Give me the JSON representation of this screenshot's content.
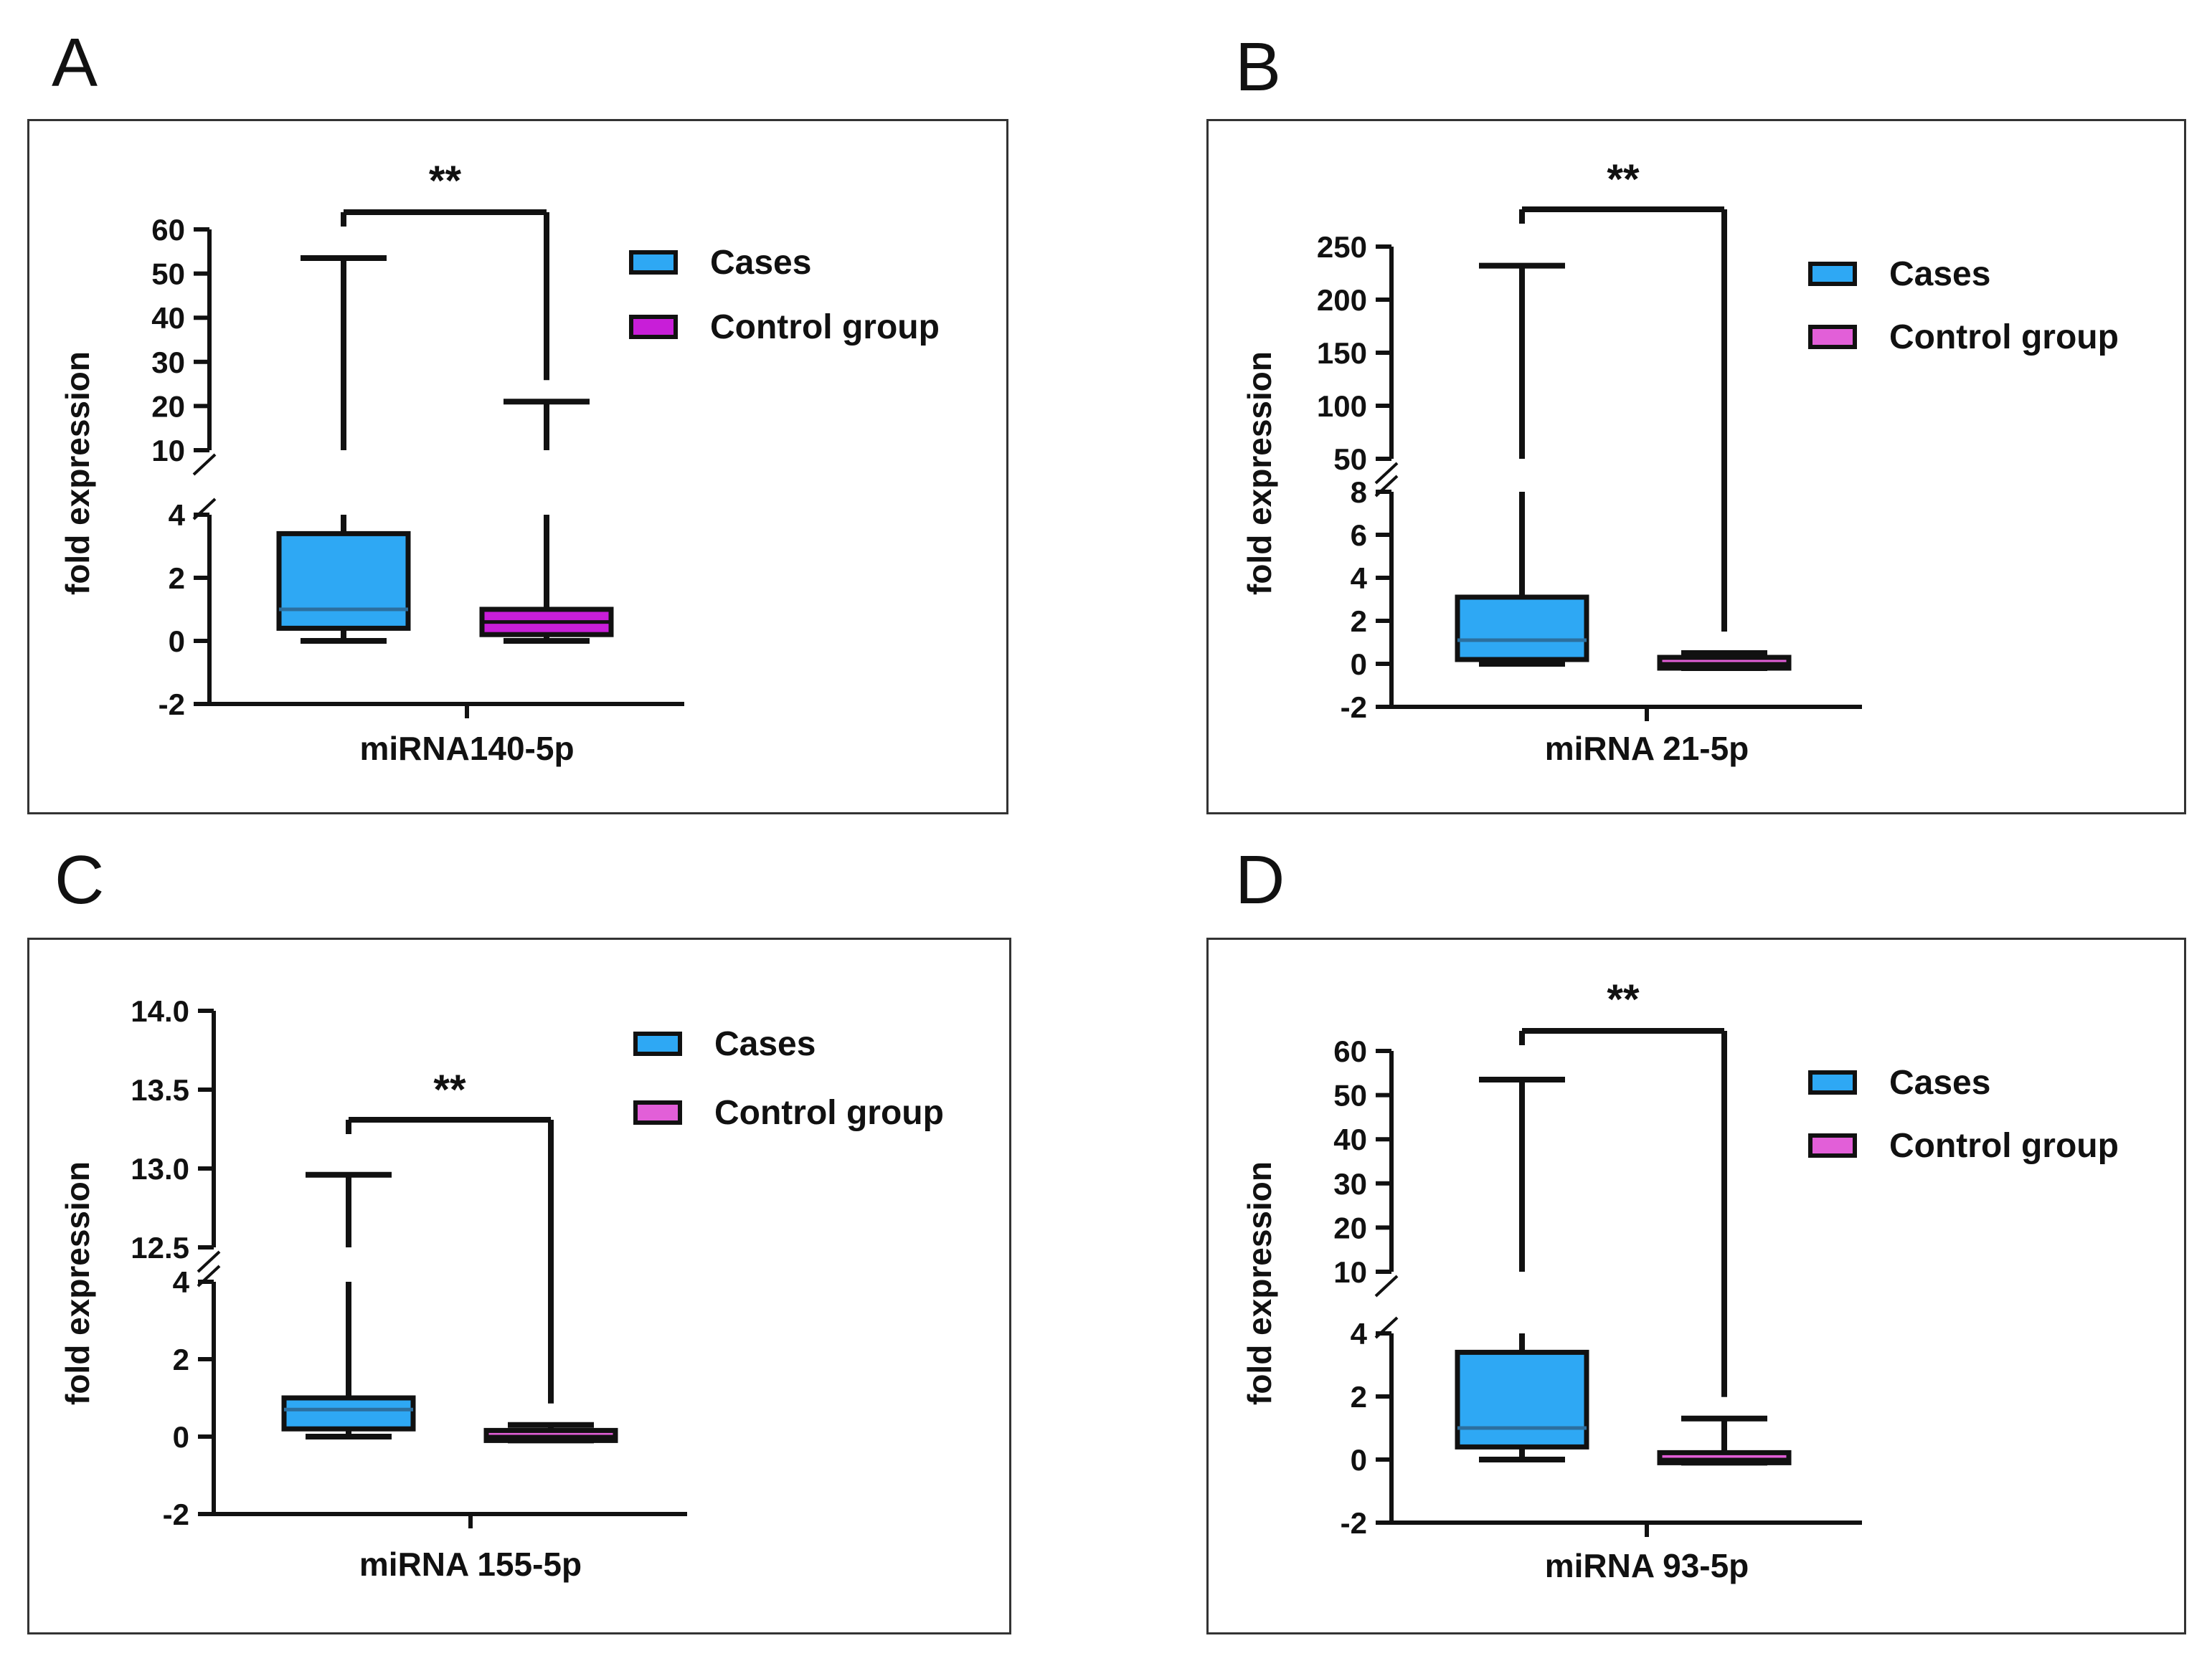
{
  "chart_data": [
    {
      "panel": "A",
      "type": "box",
      "xlabel": "miRNA140-5p",
      "ylabel": "fold expression",
      "significance": "**",
      "colors": {
        "cases": "#2ea8f4",
        "control": "#c81ed8"
      },
      "ylim_lower": [
        -2,
        4
      ],
      "ylim_upper": [
        10,
        60
      ],
      "yticks_lower": [
        -2,
        0,
        2,
        4
      ],
      "yticks_upper": [
        10,
        20,
        30,
        40,
        50,
        60
      ],
      "legend": [
        "Cases",
        "Control group"
      ],
      "series": [
        {
          "name": "Cases",
          "min": 0.0,
          "q1": 0.4,
          "median": 1.0,
          "q3": 3.4,
          "max": 53.5
        },
        {
          "name": "Control group",
          "min": 0.0,
          "q1": 0.2,
          "median": 0.6,
          "q3": 1.0,
          "max": 21.0
        }
      ]
    },
    {
      "panel": "B",
      "type": "box",
      "xlabel": "miRNA 21-5p",
      "ylabel": "fold expression",
      "significance": "**",
      "colors": {
        "cases": "#2ea8f4",
        "control": "#e25fd8"
      },
      "ylim_lower": [
        -2,
        8
      ],
      "ylim_upper": [
        25,
        250
      ],
      "yticks_lower": [
        -2,
        0,
        2,
        4,
        6,
        8
      ],
      "yticks_upper": [
        50,
        100,
        150,
        200,
        250
      ],
      "legend": [
        "Cases",
        "Control group"
      ],
      "series": [
        {
          "name": "Cases",
          "min": 0.0,
          "q1": 0.2,
          "median": 1.1,
          "q3": 3.1,
          "max": 232
        },
        {
          "name": "Control group",
          "min": -0.2,
          "q1": -0.2,
          "median": 0.0,
          "q3": 0.3,
          "max": 0.5
        }
      ]
    },
    {
      "panel": "C",
      "type": "box",
      "xlabel": "miRNA 155-5p",
      "ylabel": "fold expression",
      "significance": "**",
      "colors": {
        "cases": "#2ea8f4",
        "control": "#e25fd8"
      },
      "ylim_lower": [
        -2,
        4
      ],
      "ylim_upper": [
        12.5,
        14.0
      ],
      "yticks_lower": [
        -2,
        0,
        2,
        4
      ],
      "yticks_upper": [
        "12.5",
        "13.0",
        "13.5",
        "14.0"
      ],
      "legend": [
        "Cases",
        "Control group"
      ],
      "series": [
        {
          "name": "Cases",
          "min": 0.0,
          "q1": 0.2,
          "median": 0.7,
          "q3": 1.0,
          "max": 12.96
        },
        {
          "name": "Control group",
          "min": -0.1,
          "q1": -0.1,
          "median": 0.0,
          "q3": 0.15,
          "max": 0.3
        }
      ]
    },
    {
      "panel": "D",
      "type": "box",
      "xlabel": "miRNA 93-5p",
      "ylabel": "fold expression",
      "significance": "**",
      "colors": {
        "cases": "#2ea8f4",
        "control": "#e25fd8"
      },
      "ylim_lower": [
        -2,
        4
      ],
      "ylim_upper": [
        10,
        60
      ],
      "yticks_lower": [
        -2,
        0,
        2,
        4
      ],
      "yticks_upper": [
        10,
        20,
        30,
        40,
        50,
        60
      ],
      "legend": [
        "Cases",
        "Control group"
      ],
      "series": [
        {
          "name": "Cases",
          "min": 0.0,
          "q1": 0.4,
          "median": 1.0,
          "q3": 3.4,
          "max": 53.5
        },
        {
          "name": "Control group",
          "min": -0.1,
          "q1": -0.1,
          "median": 0.0,
          "q3": 0.2,
          "max": 1.3
        }
      ]
    }
  ]
}
